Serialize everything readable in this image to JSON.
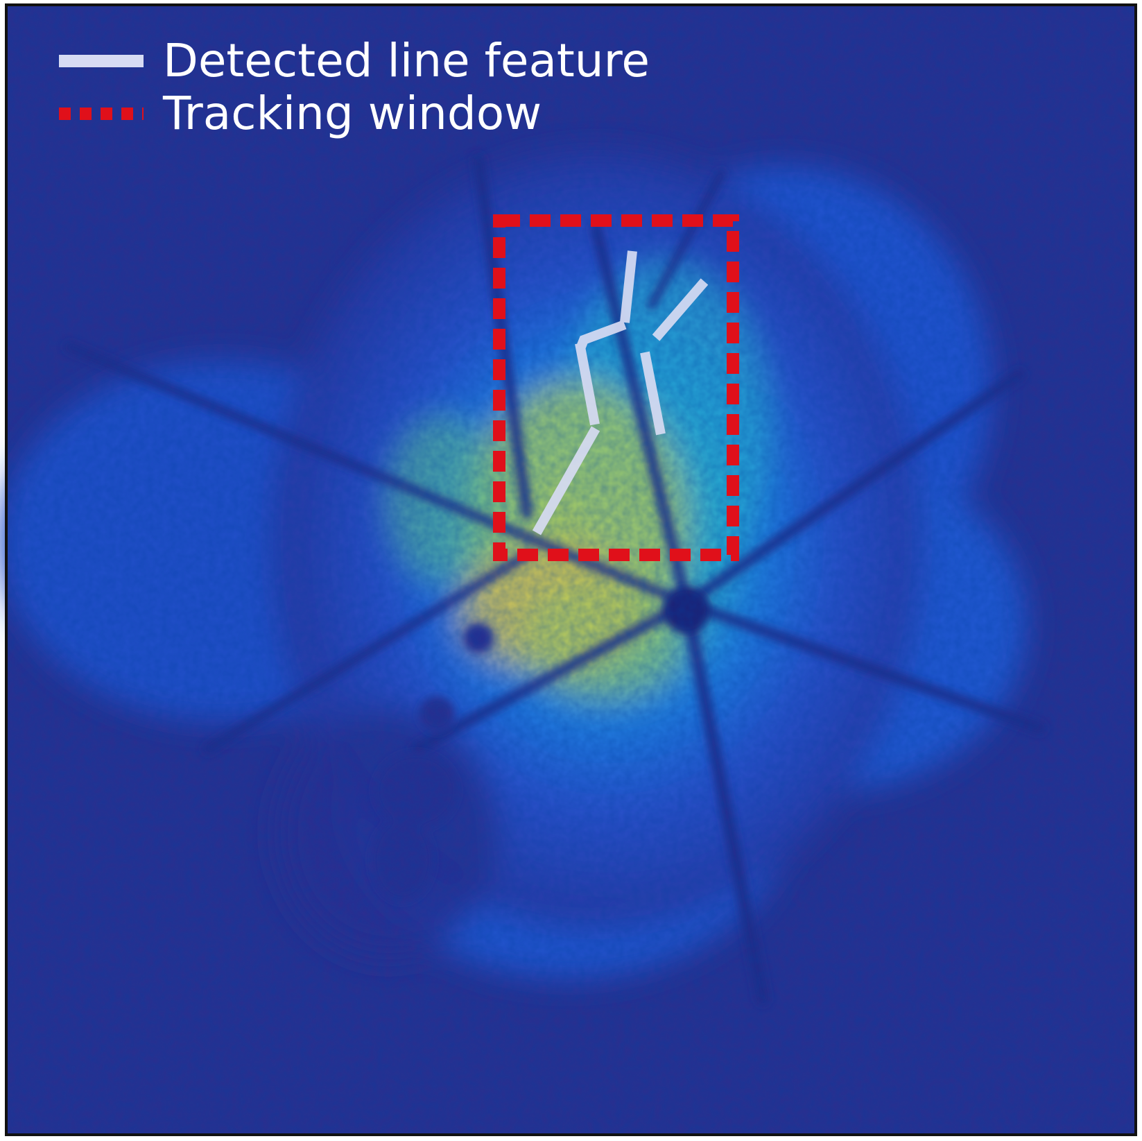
{
  "legend": {
    "items": [
      {
        "label": "Detected line feature",
        "style": "solid",
        "color": "#d7dbf3"
      },
      {
        "label": "Tracking window",
        "style": "dashed",
        "color": "#e0101a"
      }
    ]
  },
  "colors": {
    "background_low": "#2b2f8f",
    "mid_blue": "#1f6fe0",
    "cyan": "#2cb3d8",
    "green": "#7fcf6a",
    "yellow": "#f2c445",
    "grain_lines": "#232a86",
    "frame": "#111111"
  }
}
